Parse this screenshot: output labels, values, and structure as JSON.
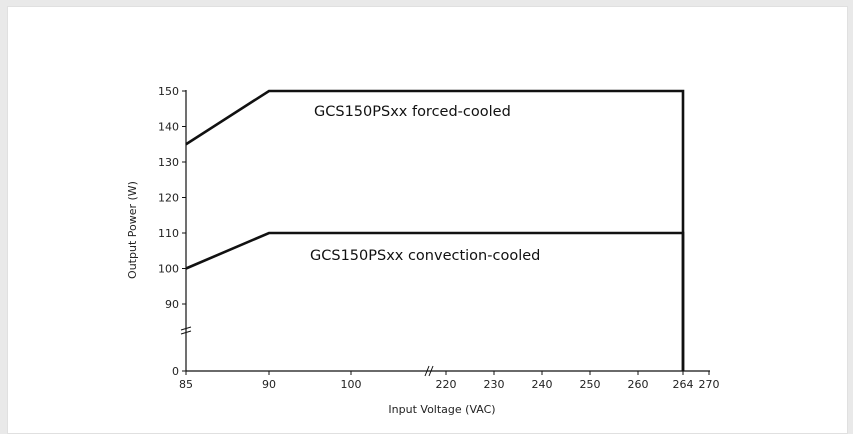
{
  "chart_data": {
    "type": "line",
    "title": "",
    "xlabel": "Input Voltage (VAC)",
    "ylabel": "Output Power (W)",
    "x_ticks": [
      "85",
      "90",
      "100",
      "220",
      "230",
      "240",
      "250",
      "260",
      "264",
      "270"
    ],
    "y_ticks": [
      "0",
      "90",
      "100",
      "110",
      "120",
      "130",
      "140",
      "150"
    ],
    "x_axis_break": "between 100 and 220",
    "y_axis_break": "between 0 and 90",
    "grid": false,
    "series": [
      {
        "name": "GCS150PSxx forced-cooled",
        "x": [
          85,
          90,
          264,
          264
        ],
        "y": [
          135,
          150,
          150,
          0
        ]
      },
      {
        "name": "GCS150PSxx convection-cooled",
        "x": [
          85,
          90,
          264,
          264
        ],
        "y": [
          100,
          110,
          110,
          0
        ]
      }
    ]
  },
  "colors": {
    "line": "#111111",
    "axis": "#111111",
    "background": "#ffffff"
  }
}
